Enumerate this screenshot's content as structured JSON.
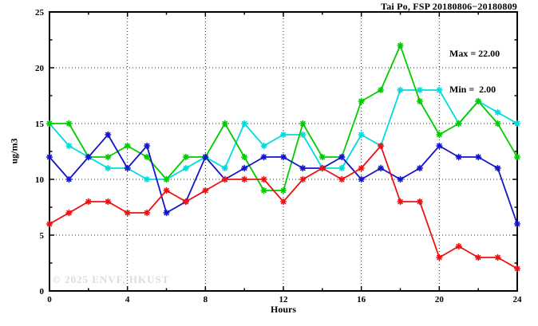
{
  "watermark": "© 2025 ENVF, HKUST",
  "chart_data": {
    "type": "line",
    "title": "Tai Po, FSP 20180806−20180809",
    "xlabel": "Hours",
    "ylabel": "ug/m3",
    "xlim": [
      0,
      24
    ],
    "ylim": [
      0,
      25
    ],
    "x_major_ticks": [
      0,
      4,
      8,
      12,
      16,
      20,
      24
    ],
    "x_minor_ticks": [
      2,
      6,
      10,
      14,
      18,
      22
    ],
    "y_major_ticks": [
      0,
      5,
      10,
      15,
      20,
      25
    ],
    "y_minor_ticks": [
      2.5,
      7.5,
      12.5,
      17.5,
      22.5
    ],
    "grid": {
      "h_lines": [
        5,
        10,
        15,
        20
      ],
      "v_lines": [
        4,
        8,
        12,
        16,
        20
      ],
      "style": "dotted"
    },
    "legend": "none",
    "marker": "star",
    "x": [
      0,
      1,
      2,
      3,
      4,
      5,
      6,
      7,
      8,
      9,
      10,
      11,
      12,
      13,
      14,
      15,
      16,
      17,
      18,
      19,
      20,
      21,
      22,
      23,
      24
    ],
    "series": [
      {
        "name": "cyan-series",
        "color": "#00dcdc",
        "values": [
          15,
          13,
          12,
          11,
          11,
          10,
          10,
          11,
          12,
          11,
          15,
          13,
          14,
          14,
          11,
          11,
          14,
          13,
          18,
          18,
          18,
          15,
          17,
          16,
          15
        ]
      },
      {
        "name": "green-series",
        "color": "#00cc00",
        "values": [
          15,
          15,
          12,
          12,
          13,
          12,
          10,
          12,
          12,
          15,
          12,
          9,
          9,
          15,
          12,
          12,
          17,
          18,
          22,
          17,
          14,
          15,
          17,
          15,
          12
        ]
      },
      {
        "name": "blue-series",
        "color": "#1414cc",
        "values": [
          12,
          10,
          12,
          14,
          11,
          13,
          7,
          8,
          12,
          10,
          11,
          12,
          12,
          11,
          11,
          12,
          10,
          11,
          10,
          11,
          13,
          12,
          12,
          11,
          6
        ]
      },
      {
        "name": "red-series",
        "color": "#ee1111",
        "values": [
          6,
          7,
          8,
          8,
          7,
          7,
          9,
          8,
          9,
          10,
          10,
          10,
          8,
          10,
          11,
          10,
          11,
          13,
          8,
          8,
          3,
          4,
          3,
          3,
          2
        ]
      }
    ],
    "annotations": {
      "max_text": "Max = 22.00",
      "min_text": "Min =  2.00"
    }
  }
}
